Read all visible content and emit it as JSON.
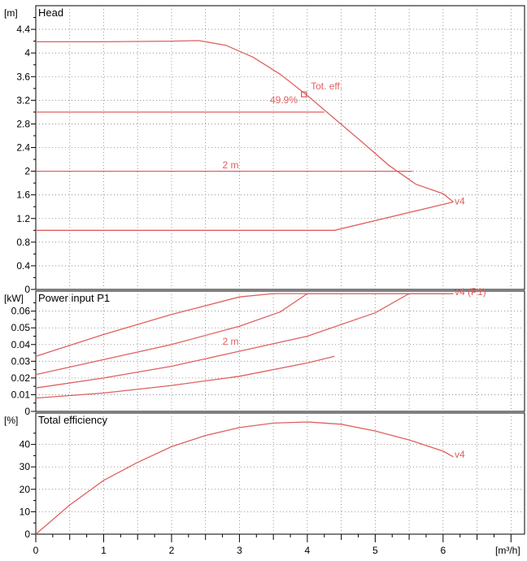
{
  "chart_data": [
    {
      "type": "line",
      "title": "Head",
      "ylabel": "[m]",
      "xlim": [
        0,
        7.2
      ],
      "ylim": [
        0,
        4.8
      ],
      "yticks": [
        0,
        0.4,
        0.8,
        1.2,
        1.6,
        2,
        2.4,
        2.8,
        3.2,
        3.6,
        4,
        4.4
      ],
      "ytick_labels": [
        "0",
        "0.4",
        "0.8",
        "1.2",
        "1.6",
        "2",
        "2.4",
        "2.8",
        "3.2",
        "3.6",
        "4",
        "4.4"
      ],
      "grid": true,
      "color": "#e06060",
      "series": [
        {
          "x": [
            0,
            1,
            2,
            2.4,
            2.8,
            3.2,
            3.6,
            4,
            4.4,
            4.8,
            5.2,
            5.6,
            6.0,
            6.15
          ],
          "y": [
            4.19,
            4.19,
            4.2,
            4.21,
            4.13,
            3.93,
            3.64,
            3.28,
            2.89,
            2.5,
            2.1,
            1.78,
            1.62,
            1.48
          ]
        },
        {
          "x": [
            0,
            4.25
          ],
          "y": [
            3.0,
            3.0
          ]
        },
        {
          "x": [
            0,
            5.55
          ],
          "y": [
            2.0,
            2.0
          ]
        },
        {
          "x": [
            0,
            4.4,
            6.15
          ],
          "y": [
            1.0,
            1.0,
            1.48
          ]
        }
      ],
      "annotations": [
        {
          "text": "Tot. eff.",
          "x": 4.05,
          "y": 3.38
        },
        {
          "text": "49.9%",
          "x": 3.45,
          "y": 3.15
        },
        {
          "text": "2 m",
          "x": 2.75,
          "y": 2.05
        },
        {
          "text": "v4",
          "x": 6.17,
          "y": 1.44
        }
      ],
      "marker": {
        "x": 3.95,
        "y": 3.3
      }
    },
    {
      "type": "line",
      "title": "Power input P1",
      "ylabel": "[kW]",
      "xlim": [
        0,
        7.2
      ],
      "ylim": [
        0,
        0.072
      ],
      "yticks": [
        0,
        0.01,
        0.02,
        0.03,
        0.04,
        0.05,
        0.06
      ],
      "ytick_labels": [
        "0",
        "0.01",
        "0.02",
        "0.03",
        "0.04",
        "0.05",
        "0.06"
      ],
      "grid": true,
      "color": "#e06060",
      "series": [
        {
          "x": [
            0,
            1,
            2,
            3,
            3.5,
            4,
            5,
            6.15
          ],
          "y": [
            0.033,
            0.046,
            0.058,
            0.0685,
            0.0705,
            0.0705,
            0.0705,
            0.0705
          ]
        },
        {
          "x": [
            0,
            1,
            2,
            3,
            3.6,
            4.0,
            5,
            6.15
          ],
          "y": [
            0.022,
            0.031,
            0.04,
            0.051,
            0.0595,
            0.0705,
            0.0705,
            0.0705
          ]
        },
        {
          "x": [
            0,
            1,
            2,
            3,
            4,
            5,
            5.5,
            6.15
          ],
          "y": [
            0.014,
            0.02,
            0.027,
            0.036,
            0.045,
            0.059,
            0.0705,
            0.0705
          ]
        },
        {
          "x": [
            0,
            1,
            2,
            3,
            4,
            4.4
          ],
          "y": [
            0.008,
            0.011,
            0.0155,
            0.021,
            0.029,
            0.033
          ]
        }
      ],
      "annotations": [
        {
          "text": "2 m",
          "x": 2.75,
          "y": 0.04
        },
        {
          "text": "v4 (P1)",
          "x": 6.17,
          "y": 0.0695
        }
      ]
    },
    {
      "type": "line",
      "title": "Total efficiency",
      "ylabel": "[%]",
      "xlabel": "[m³/h]",
      "xlim": [
        0,
        7.2
      ],
      "ylim": [
        0,
        54
      ],
      "xticks": [
        0,
        1,
        2,
        3,
        4,
        5,
        6
      ],
      "xtick_labels": [
        "0",
        "1",
        "2",
        "3",
        "4",
        "5",
        "6"
      ],
      "yticks": [
        0,
        10,
        20,
        30,
        40
      ],
      "ytick_labels": [
        "0",
        "10",
        "20",
        "30",
        "40"
      ],
      "grid": true,
      "color": "#e06060",
      "series": [
        {
          "x": [
            0,
            0.25,
            0.5,
            1,
            1.5,
            2,
            2.5,
            3,
            3.5,
            4,
            4.5,
            5,
            5.5,
            6.0,
            6.15
          ],
          "y": [
            0,
            6.5,
            13,
            24,
            32,
            39,
            44,
            47.5,
            49.5,
            50,
            49,
            46,
            42,
            37,
            34.5
          ]
        }
      ],
      "annotations": [
        {
          "text": "v4",
          "x": 6.17,
          "y": 34
        }
      ]
    }
  ]
}
